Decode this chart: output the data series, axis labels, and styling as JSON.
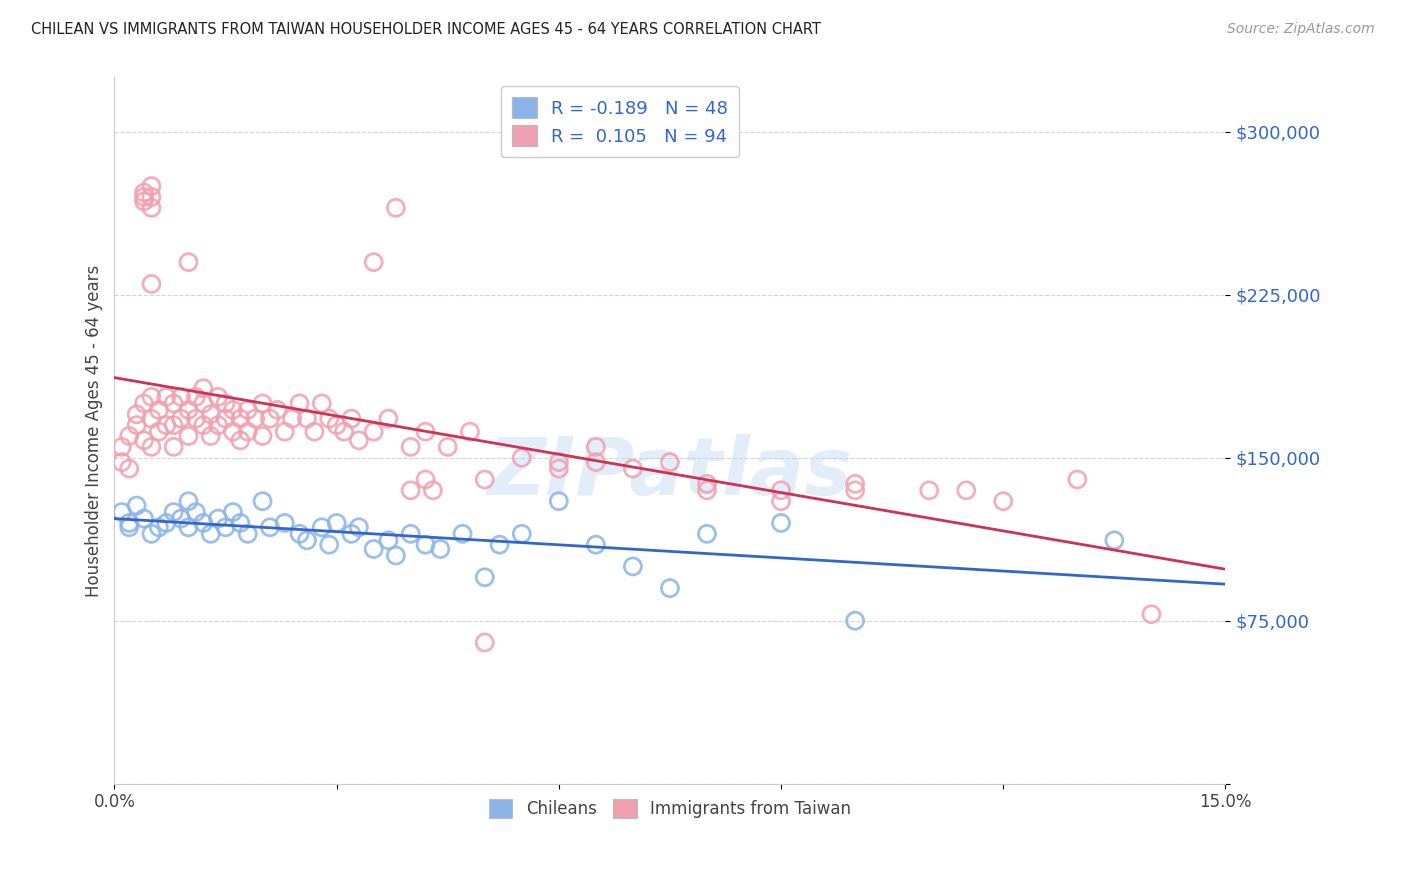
{
  "title": "CHILEAN VS IMMIGRANTS FROM TAIWAN HOUSEHOLDER INCOME AGES 45 - 64 YEARS CORRELATION CHART",
  "source": "Source: ZipAtlas.com",
  "ylabel": "Householder Income Ages 45 - 64 years",
  "xlim": [
    0.0,
    0.15
  ],
  "ylim": [
    0,
    325000
  ],
  "yticks": [
    0,
    75000,
    150000,
    225000,
    300000
  ],
  "ytick_labels": [
    "",
    "$75,000",
    "$150,000",
    "$225,000",
    "$300,000"
  ],
  "xticks": [
    0.0,
    0.03,
    0.06,
    0.09,
    0.12,
    0.15
  ],
  "xtick_labels": [
    "0.0%",
    "",
    "",
    "",
    "",
    "15.0%"
  ],
  "legend_r_chileans": "-0.189",
  "legend_n_chileans": "48",
  "legend_r_taiwan": "0.105",
  "legend_n_taiwan": "94",
  "chilean_color": "#8ab4e8",
  "taiwan_color": "#f0a0b0",
  "line_chilean_color": "#3366cc",
  "line_taiwan_color": "#cc3355",
  "background_color": "#ffffff",
  "grid_color": "#d0d0d0",
  "watermark": "ZIPatlas",
  "chileans_x": [
    0.001,
    0.002,
    0.002,
    0.003,
    0.004,
    0.005,
    0.006,
    0.007,
    0.008,
    0.009,
    0.01,
    0.01,
    0.011,
    0.012,
    0.013,
    0.014,
    0.015,
    0.016,
    0.017,
    0.018,
    0.02,
    0.021,
    0.023,
    0.025,
    0.026,
    0.028,
    0.029,
    0.03,
    0.032,
    0.033,
    0.035,
    0.037,
    0.038,
    0.04,
    0.042,
    0.044,
    0.047,
    0.05,
    0.052,
    0.055,
    0.06,
    0.065,
    0.07,
    0.075,
    0.08,
    0.09,
    0.1,
    0.135
  ],
  "chileans_y": [
    125000,
    120000,
    118000,
    128000,
    122000,
    115000,
    118000,
    120000,
    125000,
    122000,
    130000,
    118000,
    125000,
    120000,
    115000,
    122000,
    118000,
    125000,
    120000,
    115000,
    130000,
    118000,
    120000,
    115000,
    112000,
    118000,
    110000,
    120000,
    115000,
    118000,
    108000,
    112000,
    105000,
    115000,
    110000,
    108000,
    115000,
    95000,
    110000,
    115000,
    130000,
    110000,
    100000,
    90000,
    115000,
    120000,
    75000,
    112000
  ],
  "taiwan_x": [
    0.001,
    0.001,
    0.002,
    0.002,
    0.003,
    0.003,
    0.004,
    0.004,
    0.005,
    0.005,
    0.005,
    0.006,
    0.006,
    0.007,
    0.007,
    0.008,
    0.008,
    0.008,
    0.009,
    0.009,
    0.01,
    0.01,
    0.011,
    0.011,
    0.012,
    0.012,
    0.012,
    0.013,
    0.013,
    0.014,
    0.014,
    0.015,
    0.015,
    0.016,
    0.016,
    0.017,
    0.017,
    0.018,
    0.018,
    0.019,
    0.02,
    0.02,
    0.021,
    0.022,
    0.023,
    0.024,
    0.025,
    0.026,
    0.027,
    0.028,
    0.029,
    0.03,
    0.031,
    0.032,
    0.033,
    0.035,
    0.037,
    0.04,
    0.042,
    0.045,
    0.048,
    0.05,
    0.055,
    0.06,
    0.065,
    0.07,
    0.075,
    0.08,
    0.09,
    0.1,
    0.004,
    0.004,
    0.004,
    0.005,
    0.005,
    0.005,
    0.04,
    0.042,
    0.043,
    0.05,
    0.035,
    0.038,
    0.08,
    0.09,
    0.1,
    0.11,
    0.12,
    0.13,
    0.14,
    0.115,
    0.06,
    0.065,
    0.005,
    0.01
  ],
  "taiwan_y": [
    155000,
    148000,
    160000,
    145000,
    170000,
    165000,
    175000,
    158000,
    168000,
    178000,
    155000,
    172000,
    162000,
    178000,
    165000,
    175000,
    165000,
    155000,
    168000,
    178000,
    172000,
    160000,
    178000,
    168000,
    182000,
    165000,
    175000,
    170000,
    160000,
    178000,
    165000,
    175000,
    168000,
    172000,
    162000,
    168000,
    158000,
    172000,
    162000,
    168000,
    175000,
    160000,
    168000,
    172000,
    162000,
    168000,
    175000,
    168000,
    162000,
    175000,
    168000,
    165000,
    162000,
    168000,
    158000,
    162000,
    168000,
    155000,
    162000,
    155000,
    162000,
    140000,
    150000,
    148000,
    155000,
    145000,
    148000,
    135000,
    130000,
    138000,
    270000,
    272000,
    268000,
    275000,
    265000,
    270000,
    135000,
    140000,
    135000,
    65000,
    240000,
    265000,
    138000,
    135000,
    135000,
    135000,
    130000,
    140000,
    78000,
    135000,
    145000,
    148000,
    230000,
    240000
  ]
}
